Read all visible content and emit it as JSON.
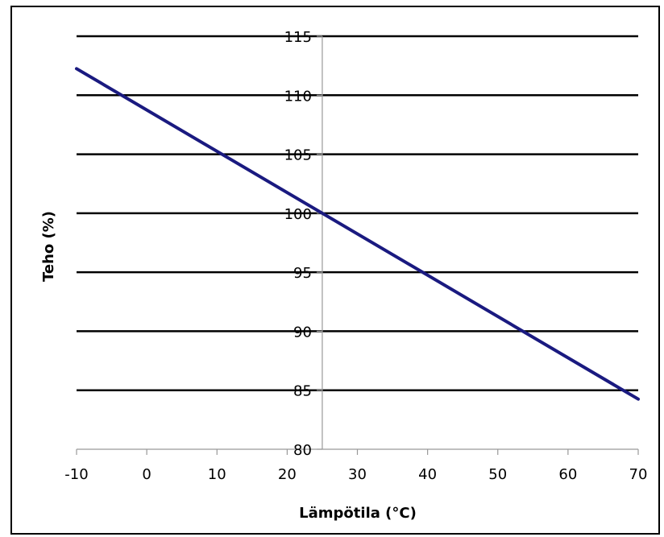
{
  "chart_data": {
    "type": "line",
    "xlabel": "Lämpötila (°C)",
    "ylabel": "Teho (%)",
    "xlim": [
      -10,
      70
    ],
    "ylim": [
      80,
      115
    ],
    "x_ticks": [
      -10,
      0,
      10,
      20,
      30,
      40,
      50,
      60,
      70
    ],
    "y_ticks": [
      80,
      85,
      90,
      95,
      100,
      105,
      110,
      115
    ],
    "x_tick_labels": [
      "-10",
      "0",
      "10",
      "20",
      "30",
      "40",
      "50",
      "60",
      "70"
    ],
    "y_tick_labels": [
      "80",
      "85",
      "90",
      "95",
      "100",
      "105",
      "110",
      "115"
    ],
    "y_axis_crosses_at_x": 25,
    "grid": "horizontal",
    "legend": "none",
    "series": [
      {
        "x": [
          -10,
          70
        ],
        "values": [
          112.25,
          84.25
        ],
        "color": "#1a1a80"
      }
    ],
    "colors": {
      "line": "#1a1a80",
      "grid": "#000000",
      "axis": "#999999",
      "frame": "#000000"
    }
  }
}
